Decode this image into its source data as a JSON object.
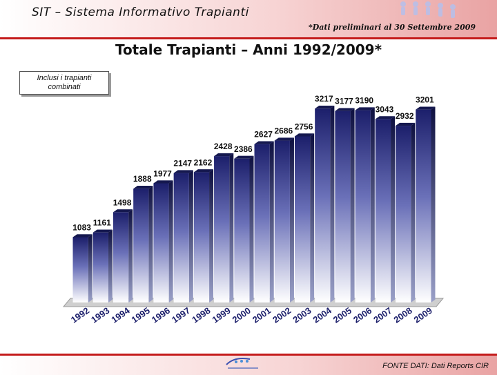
{
  "header": {
    "title": "SIT – Sistema Informativo Trapianti",
    "note": "*Dati preliminari al 30 Settembre 2009"
  },
  "note_box": {
    "line1": "Inclusi i trapianti",
    "line2": "combinati"
  },
  "footer": {
    "source": "FONTE DATI: Dati Reports CIR"
  },
  "colors": {
    "accent": "#c41a1a",
    "bar_dark": "#1c1f6b",
    "bar_light": "#ffffff"
  },
  "chart_data": {
    "type": "bar",
    "title": "Totale Trapianti – Anni 1992/2009*",
    "categories": [
      "1992",
      "1993",
      "1994",
      "1995",
      "1996",
      "1997",
      "1998",
      "1999",
      "2000",
      "2001",
      "2002",
      "2003",
      "2004",
      "2005",
      "2006",
      "2007",
      "2008",
      "2009"
    ],
    "values": [
      1083,
      1161,
      1498,
      1888,
      1977,
      2147,
      2162,
      2428,
      2386,
      2627,
      2686,
      2756,
      3217,
      3177,
      3190,
      3043,
      2932,
      3201
    ],
    "ylim": [
      0,
      3300
    ],
    "grid": false,
    "legend": "none"
  }
}
